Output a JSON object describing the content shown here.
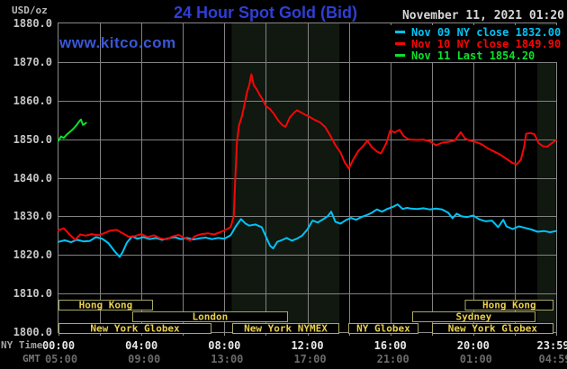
{
  "header": {
    "units_label": "USD/oz",
    "title": "24 Hour Spot Gold (Bid)",
    "timestamp": "November 11, 2021 01:20",
    "watermark": "www.kitco.com"
  },
  "legend": [
    {
      "id": "nov-09",
      "label": "Nov 09 NY close 1832.00",
      "color": "#00c4f8"
    },
    {
      "id": "nov-10",
      "label": "Nov 10 NY close 1849.90",
      "color": "#f60606"
    },
    {
      "id": "nov-11",
      "label": "Nov 11 Last 1854.20",
      "color": "#0ce02c"
    }
  ],
  "y_axis": {
    "ticks": [
      {
        "label": "1880.0",
        "value": 1880
      },
      {
        "label": "1870.0",
        "value": 1870
      },
      {
        "label": "1860.0",
        "value": 1860
      },
      {
        "label": "1850.0",
        "value": 1850
      },
      {
        "label": "1840.0",
        "value": 1840
      },
      {
        "label": "1830.0",
        "value": 1830
      },
      {
        "label": "1820.0",
        "value": 1820
      },
      {
        "label": "1810.0",
        "value": 1810
      },
      {
        "label": "1800.0",
        "value": 1800
      }
    ]
  },
  "x_axis": {
    "ny_label": "NY Time",
    "gmt_label": "GMT",
    "ticks": [
      {
        "ny": "00:00",
        "gmt": "05:00",
        "hour": 0
      },
      {
        "ny": "04:00",
        "gmt": "09:00",
        "hour": 4
      },
      {
        "ny": "08:00",
        "gmt": "13:00",
        "hour": 8
      },
      {
        "ny": "12:00",
        "gmt": "17:00",
        "hour": 12
      },
      {
        "ny": "16:00",
        "gmt": "21:00",
        "hour": 16
      },
      {
        "ny": "20:00",
        "gmt": "01:00",
        "hour": 20
      },
      {
        "ny": "23:59",
        "gmt": "04:59",
        "hour": 23.983
      }
    ]
  },
  "plot": {
    "grid_color": "#828282",
    "border_color": "#8a8a8a",
    "band_color": "#101810",
    "bands": [
      {
        "name": "nymex-session-band",
        "start": 8.35,
        "end": 13.55
      },
      {
        "name": "late-session-band",
        "start": 23.09,
        "end": 23.983
      }
    ]
  },
  "sessions": {
    "border_color": "#a8a863",
    "text_color": "#e8cf4e",
    "rows": [
      {
        "bars": [
          {
            "label": "Hong Kong",
            "start": 0,
            "end": 4.55
          },
          {
            "label": "Hong Kong",
            "start": 19.6,
            "end": 23.87
          }
        ]
      },
      {
        "bars": [
          {
            "label": "London",
            "start": 3.55,
            "end": 11.07
          },
          {
            "label": "Sydney",
            "start": 17.05,
            "end": 23.0
          }
        ]
      },
      {
        "bars": [
          {
            "label": "New York Globex",
            "start": 0,
            "end": 7.38
          },
          {
            "label": "New York NYMEX",
            "start": 8.38,
            "end": 13.54
          },
          {
            "label": "NY Globex",
            "start": 13.97,
            "end": 17.36
          },
          {
            "label": "New York Globex",
            "start": 18.0,
            "end": 23.87
          }
        ]
      }
    ]
  },
  "chart_data": {
    "type": "line",
    "title": "24 Hour Spot Gold (Bid)",
    "ylabel": "USD/oz",
    "xlabel": "NY Time (hours)",
    "xlim": [
      0,
      24
    ],
    "ylim": [
      1800,
      1880
    ],
    "grid": true,
    "legend_position": "top-right",
    "series": [
      {
        "id": "nov-09",
        "name": "Nov 09 NY close 1832.00",
        "color": "#00c4f8",
        "points": [
          [
            0,
            1823.4
          ],
          [
            0.3,
            1823.8
          ],
          [
            0.6,
            1823.3
          ],
          [
            0.9,
            1823.9
          ],
          [
            1.2,
            1823.5
          ],
          [
            1.5,
            1823.6
          ],
          [
            1.8,
            1824.6
          ],
          [
            2.1,
            1824.2
          ],
          [
            2.4,
            1823.1
          ],
          [
            2.7,
            1821.0
          ],
          [
            2.95,
            1819.5
          ],
          [
            3.1,
            1820.8
          ],
          [
            3.3,
            1823.2
          ],
          [
            3.55,
            1824.8
          ],
          [
            3.8,
            1824.2
          ],
          [
            4.1,
            1824.6
          ],
          [
            4.4,
            1824.1
          ],
          [
            4.7,
            1824.4
          ],
          [
            5.0,
            1823.9
          ],
          [
            5.3,
            1824.3
          ],
          [
            5.6,
            1824.6
          ],
          [
            5.9,
            1824.1
          ],
          [
            6.2,
            1824.4
          ],
          [
            6.5,
            1824.0
          ],
          [
            6.8,
            1824.3
          ],
          [
            7.1,
            1824.5
          ],
          [
            7.4,
            1824.1
          ],
          [
            7.7,
            1824.4
          ],
          [
            8.0,
            1824.2
          ],
          [
            8.3,
            1825.1
          ],
          [
            8.55,
            1827.4
          ],
          [
            8.8,
            1829.3
          ],
          [
            9.0,
            1828.2
          ],
          [
            9.2,
            1827.6
          ],
          [
            9.5,
            1827.9
          ],
          [
            9.8,
            1827.2
          ],
          [
            10.0,
            1824.8
          ],
          [
            10.2,
            1822.4
          ],
          [
            10.35,
            1821.7
          ],
          [
            10.55,
            1823.4
          ],
          [
            10.8,
            1823.9
          ],
          [
            11.0,
            1824.4
          ],
          [
            11.25,
            1823.7
          ],
          [
            11.5,
            1824.2
          ],
          [
            11.75,
            1825.0
          ],
          [
            12.0,
            1826.6
          ],
          [
            12.25,
            1828.9
          ],
          [
            12.5,
            1828.4
          ],
          [
            12.75,
            1829.2
          ],
          [
            13.0,
            1830.1
          ],
          [
            13.15,
            1831.2
          ],
          [
            13.35,
            1828.6
          ],
          [
            13.6,
            1828.1
          ],
          [
            13.85,
            1829.0
          ],
          [
            14.1,
            1829.6
          ],
          [
            14.35,
            1829.1
          ],
          [
            14.6,
            1829.8
          ],
          [
            14.85,
            1830.3
          ],
          [
            15.1,
            1830.9
          ],
          [
            15.35,
            1831.8
          ],
          [
            15.6,
            1831.2
          ],
          [
            15.85,
            1831.9
          ],
          [
            16.1,
            1832.4
          ],
          [
            16.35,
            1833.1
          ],
          [
            16.6,
            1831.9
          ],
          [
            16.8,
            1832.2
          ],
          [
            17.0,
            1832.0
          ],
          [
            17.3,
            1831.9
          ],
          [
            17.6,
            1832.1
          ],
          [
            17.9,
            1831.8
          ],
          [
            18.2,
            1832.0
          ],
          [
            18.5,
            1831.8
          ],
          [
            18.8,
            1830.9
          ],
          [
            19.0,
            1829.5
          ],
          [
            19.2,
            1830.7
          ],
          [
            19.45,
            1830.0
          ],
          [
            19.7,
            1829.8
          ],
          [
            20.0,
            1830.2
          ],
          [
            20.3,
            1829.2
          ],
          [
            20.6,
            1828.7
          ],
          [
            20.9,
            1828.9
          ],
          [
            21.2,
            1827.2
          ],
          [
            21.45,
            1829.1
          ],
          [
            21.6,
            1827.4
          ],
          [
            21.9,
            1826.7
          ],
          [
            22.2,
            1827.4
          ],
          [
            22.5,
            1827.0
          ],
          [
            22.8,
            1826.6
          ],
          [
            23.1,
            1826.0
          ],
          [
            23.4,
            1826.2
          ],
          [
            23.7,
            1825.9
          ],
          [
            24,
            1826.2
          ]
        ]
      },
      {
        "id": "nov-10",
        "name": "Nov 10 NY close 1849.90",
        "color": "#f60606",
        "points": [
          [
            0,
            1826.4
          ],
          [
            0.25,
            1826.9
          ],
          [
            0.5,
            1825.5
          ],
          [
            0.8,
            1823.9
          ],
          [
            1.05,
            1825.3
          ],
          [
            1.3,
            1825.0
          ],
          [
            1.6,
            1825.4
          ],
          [
            1.9,
            1825.1
          ],
          [
            2.2,
            1825.6
          ],
          [
            2.5,
            1826.3
          ],
          [
            2.8,
            1826.5
          ],
          [
            3.1,
            1825.6
          ],
          [
            3.4,
            1824.7
          ],
          [
            3.7,
            1824.9
          ],
          [
            4.0,
            1825.4
          ],
          [
            4.3,
            1824.6
          ],
          [
            4.6,
            1825.1
          ],
          [
            4.9,
            1824.3
          ],
          [
            5.2,
            1824.0
          ],
          [
            5.5,
            1824.8
          ],
          [
            5.8,
            1825.2
          ],
          [
            6.1,
            1824.3
          ],
          [
            6.35,
            1823.8
          ],
          [
            6.6,
            1824.9
          ],
          [
            6.9,
            1825.4
          ],
          [
            7.2,
            1825.6
          ],
          [
            7.5,
            1825.3
          ],
          [
            7.8,
            1825.9
          ],
          [
            8.1,
            1826.6
          ],
          [
            8.3,
            1827.2
          ],
          [
            8.45,
            1830.0
          ],
          [
            8.52,
            1839.0
          ],
          [
            8.6,
            1849.0
          ],
          [
            8.7,
            1853.5
          ],
          [
            8.85,
            1856.0
          ],
          [
            9.0,
            1859.8
          ],
          [
            9.1,
            1862.4
          ],
          [
            9.2,
            1864.0
          ],
          [
            9.3,
            1866.8
          ],
          [
            9.42,
            1863.9
          ],
          [
            9.55,
            1863.0
          ],
          [
            9.7,
            1861.5
          ],
          [
            9.85,
            1860.2
          ],
          [
            10.0,
            1858.6
          ],
          [
            10.2,
            1857.8
          ],
          [
            10.4,
            1856.5
          ],
          [
            10.6,
            1854.8
          ],
          [
            10.8,
            1853.6
          ],
          [
            10.95,
            1853.2
          ],
          [
            11.15,
            1855.6
          ],
          [
            11.35,
            1856.8
          ],
          [
            11.5,
            1857.5
          ],
          [
            11.7,
            1856.9
          ],
          [
            11.9,
            1856.3
          ],
          [
            12.1,
            1855.8
          ],
          [
            12.35,
            1855.0
          ],
          [
            12.6,
            1854.4
          ],
          [
            12.85,
            1853.2
          ],
          [
            13.1,
            1851.0
          ],
          [
            13.35,
            1848.5
          ],
          [
            13.6,
            1846.5
          ],
          [
            13.8,
            1844.0
          ],
          [
            14.0,
            1842.4
          ],
          [
            14.2,
            1844.6
          ],
          [
            14.45,
            1846.9
          ],
          [
            14.7,
            1848.3
          ],
          [
            14.9,
            1849.6
          ],
          [
            15.1,
            1848.0
          ],
          [
            15.35,
            1846.8
          ],
          [
            15.55,
            1846.3
          ],
          [
            15.8,
            1848.9
          ],
          [
            16.0,
            1852.3
          ],
          [
            16.2,
            1851.7
          ],
          [
            16.45,
            1852.4
          ],
          [
            16.65,
            1850.8
          ],
          [
            16.85,
            1850.0
          ],
          [
            17.0,
            1849.9
          ],
          [
            17.3,
            1849.8
          ],
          [
            17.6,
            1849.9
          ],
          [
            17.9,
            1849.5
          ],
          [
            18.2,
            1848.4
          ],
          [
            18.5,
            1849.1
          ],
          [
            18.8,
            1849.3
          ],
          [
            19.1,
            1849.6
          ],
          [
            19.4,
            1851.8
          ],
          [
            19.6,
            1850.2
          ],
          [
            19.85,
            1849.6
          ],
          [
            20.1,
            1849.3
          ],
          [
            20.4,
            1848.7
          ],
          [
            20.7,
            1847.6
          ],
          [
            21.0,
            1846.8
          ],
          [
            21.3,
            1846.0
          ],
          [
            21.6,
            1844.9
          ],
          [
            21.9,
            1843.8
          ],
          [
            22.1,
            1843.5
          ],
          [
            22.3,
            1844.7
          ],
          [
            22.45,
            1848.0
          ],
          [
            22.55,
            1851.4
          ],
          [
            22.75,
            1851.6
          ],
          [
            22.95,
            1851.3
          ],
          [
            23.15,
            1849.0
          ],
          [
            23.35,
            1848.2
          ],
          [
            23.55,
            1848.0
          ],
          [
            23.75,
            1848.8
          ],
          [
            24,
            1849.8
          ]
        ]
      },
      {
        "id": "nov-11",
        "name": "Nov 11 Last 1854.20",
        "color": "#0ce02c",
        "points": [
          [
            0,
            1849.6
          ],
          [
            0.12,
            1850.7
          ],
          [
            0.25,
            1850.3
          ],
          [
            0.4,
            1851.2
          ],
          [
            0.55,
            1851.9
          ],
          [
            0.7,
            1852.6
          ],
          [
            0.85,
            1853.5
          ],
          [
            1.0,
            1854.6
          ],
          [
            1.08,
            1855.1
          ],
          [
            1.18,
            1853.7
          ],
          [
            1.33,
            1854.2
          ]
        ]
      }
    ]
  }
}
